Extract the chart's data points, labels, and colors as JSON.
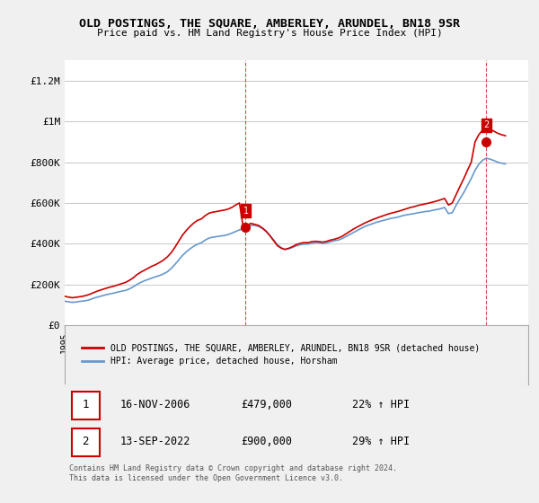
{
  "title": "OLD POSTINGS, THE SQUARE, AMBERLEY, ARUNDEL, BN18 9SR",
  "subtitle": "Price paid vs. HM Land Registry's House Price Index (HPI)",
  "xlabel": "",
  "ylabel": "",
  "ylim": [
    0,
    1300000
  ],
  "yticks": [
    0,
    200000,
    400000,
    600000,
    800000,
    1000000,
    1200000
  ],
  "ytick_labels": [
    "£0",
    "£200K",
    "£400K",
    "£600K",
    "£800K",
    "£1M",
    "£1.2M"
  ],
  "xlim_start": 1995.0,
  "xlim_end": 2025.5,
  "bg_color": "#f0f0f0",
  "plot_bg_color": "#ffffff",
  "grid_color": "#cccccc",
  "red_color": "#cc0000",
  "blue_color": "#6699cc",
  "vline_color": "#cc0000",
  "marker1_x": 2006.88,
  "marker1_y": 479000,
  "marker2_x": 2022.71,
  "marker2_y": 900000,
  "marker1_label": "1",
  "marker2_label": "2",
  "legend_label_red": "OLD POSTINGS, THE SQUARE, AMBERLEY, ARUNDEL, BN18 9SR (detached house)",
  "legend_label_blue": "HPI: Average price, detached house, Horsham",
  "table_row1": [
    "1",
    "16-NOV-2006",
    "£479,000",
    "22% ↑ HPI"
  ],
  "table_row2": [
    "2",
    "13-SEP-2022",
    "£900,000",
    "29% ↑ HPI"
  ],
  "footnote": "Contains HM Land Registry data © Crown copyright and database right 2024.\nThis data is licensed under the Open Government Licence v3.0.",
  "hpi_years": [
    1995.0,
    1995.25,
    1995.5,
    1995.75,
    1996.0,
    1996.25,
    1996.5,
    1996.75,
    1997.0,
    1997.25,
    1997.5,
    1997.75,
    1998.0,
    1998.25,
    1998.5,
    1998.75,
    1999.0,
    1999.25,
    1999.5,
    1999.75,
    2000.0,
    2000.25,
    2000.5,
    2000.75,
    2001.0,
    2001.25,
    2001.5,
    2001.75,
    2002.0,
    2002.25,
    2002.5,
    2002.75,
    2003.0,
    2003.25,
    2003.5,
    2003.75,
    2004.0,
    2004.25,
    2004.5,
    2004.75,
    2005.0,
    2005.25,
    2005.5,
    2005.75,
    2006.0,
    2006.25,
    2006.5,
    2006.75,
    2007.0,
    2007.25,
    2007.5,
    2007.75,
    2008.0,
    2008.25,
    2008.5,
    2008.75,
    2009.0,
    2009.25,
    2009.5,
    2009.75,
    2010.0,
    2010.25,
    2010.5,
    2010.75,
    2011.0,
    2011.25,
    2011.5,
    2011.75,
    2012.0,
    2012.25,
    2012.5,
    2012.75,
    2013.0,
    2013.25,
    2013.5,
    2013.75,
    2014.0,
    2014.25,
    2014.5,
    2014.75,
    2015.0,
    2015.25,
    2015.5,
    2015.75,
    2016.0,
    2016.25,
    2016.5,
    2016.75,
    2017.0,
    2017.25,
    2017.5,
    2017.75,
    2018.0,
    2018.25,
    2018.5,
    2018.75,
    2019.0,
    2019.25,
    2019.5,
    2019.75,
    2020.0,
    2020.25,
    2020.5,
    2020.75,
    2021.0,
    2021.25,
    2021.5,
    2021.75,
    2022.0,
    2022.25,
    2022.5,
    2022.75,
    2023.0,
    2023.25,
    2023.5,
    2023.75,
    2024.0
  ],
  "hpi_values": [
    118000,
    115000,
    112000,
    114000,
    117000,
    119000,
    122000,
    128000,
    135000,
    140000,
    145000,
    150000,
    154000,
    158000,
    163000,
    167000,
    171000,
    178000,
    188000,
    200000,
    210000,
    218000,
    225000,
    232000,
    238000,
    244000,
    252000,
    262000,
    278000,
    298000,
    320000,
    342000,
    360000,
    375000,
    388000,
    398000,
    405000,
    418000,
    428000,
    432000,
    435000,
    438000,
    440000,
    445000,
    452000,
    460000,
    468000,
    475000,
    482000,
    490000,
    490000,
    485000,
    475000,
    460000,
    440000,
    418000,
    395000,
    380000,
    372000,
    375000,
    382000,
    390000,
    395000,
    398000,
    398000,
    402000,
    405000,
    405000,
    400000,
    405000,
    410000,
    415000,
    418000,
    425000,
    435000,
    445000,
    455000,
    465000,
    475000,
    485000,
    492000,
    498000,
    505000,
    510000,
    515000,
    520000,
    525000,
    528000,
    532000,
    538000,
    542000,
    545000,
    548000,
    552000,
    555000,
    558000,
    560000,
    565000,
    568000,
    572000,
    578000,
    548000,
    552000,
    588000,
    620000,
    650000,
    685000,
    720000,
    760000,
    790000,
    810000,
    820000,
    815000,
    808000,
    800000,
    795000,
    792000
  ],
  "red_years": [
    1995.0,
    1995.25,
    1995.5,
    1995.75,
    1996.0,
    1996.25,
    1996.5,
    1996.75,
    1997.0,
    1997.25,
    1997.5,
    1997.75,
    1998.0,
    1998.25,
    1998.5,
    1998.75,
    1999.0,
    1999.25,
    1999.5,
    1999.75,
    2000.0,
    2000.25,
    2000.5,
    2000.75,
    2001.0,
    2001.25,
    2001.5,
    2001.75,
    2002.0,
    2002.25,
    2002.5,
    2002.75,
    2003.0,
    2003.25,
    2003.5,
    2003.75,
    2004.0,
    2004.25,
    2004.5,
    2004.75,
    2005.0,
    2005.25,
    2005.5,
    2005.75,
    2006.0,
    2006.25,
    2006.5,
    2006.75,
    2007.0,
    2007.25,
    2007.5,
    2007.75,
    2008.0,
    2008.25,
    2008.5,
    2008.75,
    2009.0,
    2009.25,
    2009.5,
    2009.75,
    2010.0,
    2010.25,
    2010.5,
    2010.75,
    2011.0,
    2011.25,
    2011.5,
    2011.75,
    2012.0,
    2012.25,
    2012.5,
    2012.75,
    2013.0,
    2013.25,
    2013.5,
    2013.75,
    2014.0,
    2014.25,
    2014.5,
    2014.75,
    2015.0,
    2015.25,
    2015.5,
    2015.75,
    2016.0,
    2016.25,
    2016.5,
    2016.75,
    2017.0,
    2017.25,
    2017.5,
    2017.75,
    2018.0,
    2018.25,
    2018.5,
    2018.75,
    2019.0,
    2019.25,
    2019.5,
    2019.75,
    2020.0,
    2020.25,
    2020.5,
    2020.75,
    2021.0,
    2021.25,
    2021.5,
    2021.75,
    2022.0,
    2022.25,
    2022.5,
    2022.75,
    2023.0,
    2023.25,
    2023.5,
    2023.75,
    2024.0
  ],
  "red_values": [
    142000,
    138000,
    135000,
    137000,
    140000,
    143000,
    148000,
    155000,
    163000,
    170000,
    176000,
    182000,
    187000,
    192000,
    198000,
    204000,
    210000,
    220000,
    232000,
    248000,
    260000,
    270000,
    280000,
    290000,
    298000,
    308000,
    320000,
    335000,
    355000,
    382000,
    412000,
    442000,
    465000,
    485000,
    502000,
    515000,
    522000,
    538000,
    550000,
    555000,
    558000,
    562000,
    565000,
    570000,
    578000,
    590000,
    600000,
    479000,
    490000,
    500000,
    495000,
    490000,
    478000,
    462000,
    440000,
    415000,
    390000,
    378000,
    372000,
    378000,
    386000,
    396000,
    402000,
    406000,
    405000,
    410000,
    412000,
    410000,
    408000,
    412000,
    418000,
    422000,
    428000,
    436000,
    448000,
    460000,
    472000,
    482000,
    492000,
    502000,
    510000,
    518000,
    525000,
    532000,
    538000,
    545000,
    550000,
    555000,
    560000,
    566000,
    572000,
    578000,
    582000,
    588000,
    592000,
    596000,
    600000,
    605000,
    610000,
    616000,
    622000,
    590000,
    600000,
    640000,
    680000,
    718000,
    760000,
    800000,
    900000,
    935000,
    958000,
    970000,
    962000,
    952000,
    942000,
    935000,
    930000
  ]
}
